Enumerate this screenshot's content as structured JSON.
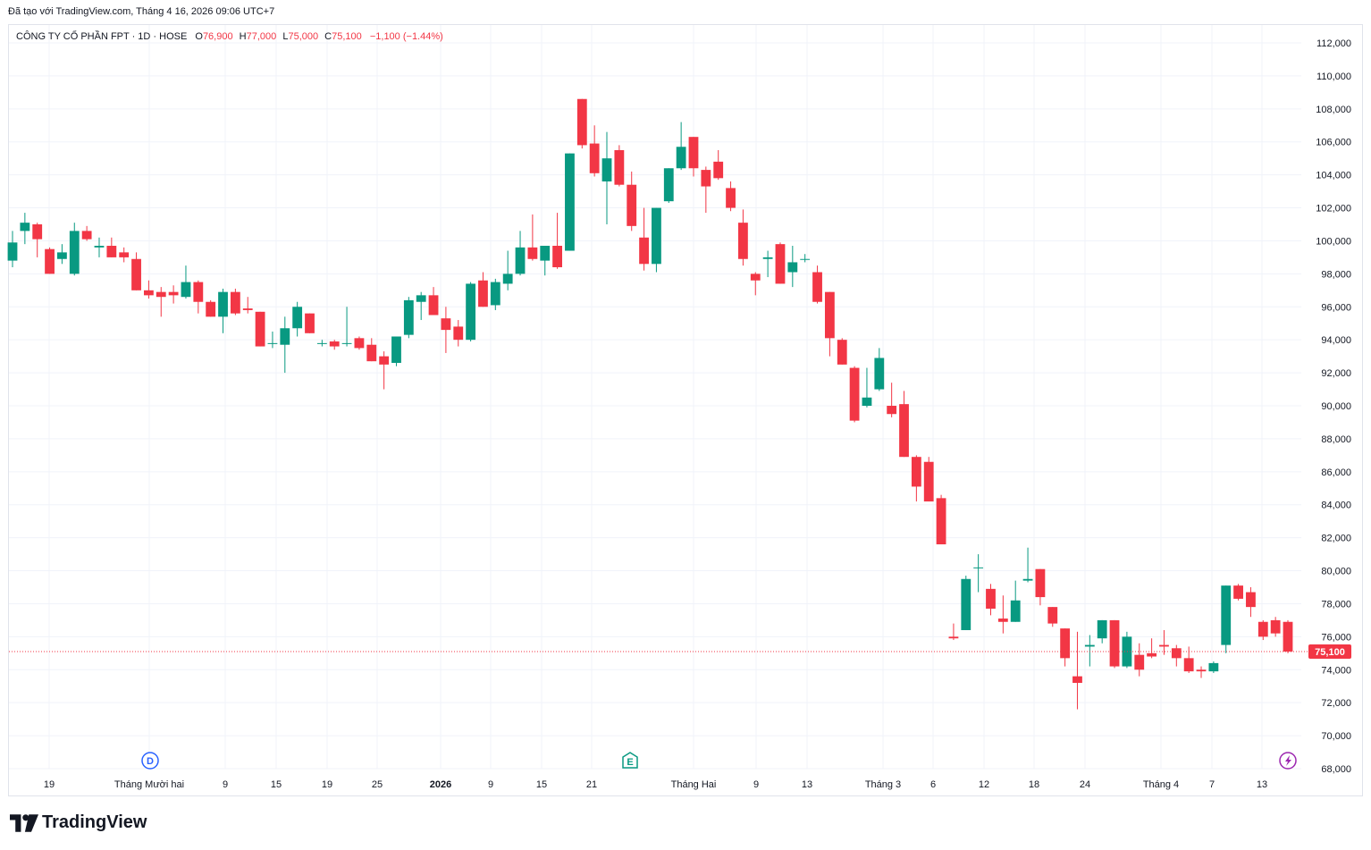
{
  "header": {
    "created_with": "Đã tạo với TradingView.com, Tháng 4 16, 2026 09:06 UTC+7"
  },
  "legend": {
    "symbol": "CÔNG TY CỔ PHẦN FPT · 1D · HOSE",
    "open_label": "O",
    "open": "76,900",
    "high_label": "H",
    "high": "77,000",
    "low_label": "L",
    "low": "75,000",
    "close_label": "C",
    "close": "75,100",
    "change": "−1,100 (−1.44%)"
  },
  "brand": {
    "name": "TradingView"
  },
  "markers": {
    "dividend": "D",
    "earnings": "E",
    "split_icon": "lightning-icon"
  },
  "colors": {
    "up": "#089981",
    "down": "#f23645",
    "grid": "#f0f3fa",
    "text": "#131722"
  },
  "chart_data": {
    "type": "candlestick",
    "y_axis": {
      "min": 68000,
      "max": 112000,
      "step": 2000,
      "side": "right"
    },
    "last_price": {
      "value": 75100,
      "label": "75,100"
    },
    "x_labels": [
      "19",
      "Tháng Mười hai",
      "9",
      "15",
      "19",
      "25",
      "2026",
      "9",
      "15",
      "21",
      "Tháng Hai",
      "9",
      "13",
      "Tháng 3",
      "6",
      "12",
      "18",
      "24",
      "Tháng 4",
      "7",
      "13"
    ],
    "ohlc": [
      [
        98800,
        100600,
        98400,
        99900
      ],
      [
        100600,
        101700,
        99800,
        101100
      ],
      [
        101000,
        101100,
        99000,
        100100
      ],
      [
        99500,
        99600,
        98000,
        98000
      ],
      [
        98900,
        99800,
        98600,
        99300
      ],
      [
        98000,
        101100,
        97900,
        100600
      ],
      [
        100600,
        100900,
        100000,
        100100
      ],
      [
        99600,
        100200,
        99000,
        99700
      ],
      [
        99700,
        100200,
        99000,
        99000
      ],
      [
        99300,
        99600,
        98700,
        99000
      ],
      [
        98900,
        99300,
        97000,
        97000
      ],
      [
        97000,
        97600,
        96500,
        96700
      ],
      [
        96900,
        97200,
        95400,
        96600
      ],
      [
        96900,
        97300,
        96200,
        96700
      ],
      [
        96600,
        98500,
        96500,
        97500
      ],
      [
        97500,
        97600,
        95600,
        96300
      ],
      [
        96300,
        96400,
        95400,
        95400
      ],
      [
        95400,
        97100,
        94400,
        96900
      ],
      [
        96900,
        97100,
        95500,
        95600
      ],
      [
        95900,
        96600,
        95600,
        95800
      ],
      [
        95700,
        95700,
        93600,
        93600
      ],
      [
        93800,
        94500,
        93500,
        93800
      ],
      [
        93700,
        95400,
        92000,
        94700
      ],
      [
        94700,
        96300,
        94200,
        96000
      ],
      [
        95600,
        95600,
        94400,
        94400
      ],
      [
        93800,
        94000,
        93600,
        93800
      ],
      [
        93900,
        94000,
        93400,
        93600
      ],
      [
        93800,
        96000,
        93600,
        93800
      ],
      [
        94100,
        94200,
        93400,
        93500
      ],
      [
        93700,
        94100,
        92700,
        92700
      ],
      [
        93000,
        93300,
        91000,
        92500
      ],
      [
        92600,
        94200,
        92400,
        94200
      ],
      [
        94300,
        96600,
        94100,
        96400
      ],
      [
        96300,
        96900,
        95200,
        96700
      ],
      [
        96700,
        97200,
        95500,
        95500
      ],
      [
        95300,
        96000,
        93200,
        94600
      ],
      [
        94800,
        95200,
        93600,
        94000
      ],
      [
        94000,
        97500,
        93900,
        97400
      ],
      [
        97600,
        98100,
        96000,
        96000
      ],
      [
        96100,
        97700,
        95800,
        97500
      ],
      [
        97400,
        99400,
        97000,
        98000
      ],
      [
        98000,
        100600,
        97900,
        99600
      ],
      [
        99600,
        101600,
        98800,
        98900
      ],
      [
        98800,
        99600,
        97900,
        99700
      ],
      [
        99700,
        101700,
        98300,
        98400
      ],
      [
        99400,
        105300,
        99400,
        105300
      ],
      [
        108600,
        108600,
        105600,
        105800
      ],
      [
        105900,
        107000,
        103900,
        104100
      ],
      [
        103600,
        106600,
        101000,
        105000
      ],
      [
        105500,
        105800,
        103300,
        103400
      ],
      [
        103400,
        104200,
        100600,
        100900
      ],
      [
        100200,
        102000,
        98200,
        98600
      ],
      [
        98600,
        102000,
        98100,
        102000
      ],
      [
        102400,
        104400,
        102300,
        104400
      ],
      [
        104400,
        107200,
        104300,
        105700
      ],
      [
        106300,
        106300,
        103900,
        104400
      ],
      [
        104300,
        104500,
        101700,
        103300
      ],
      [
        104800,
        105500,
        103700,
        103800
      ],
      [
        103200,
        103600,
        101800,
        102000
      ],
      [
        101100,
        101900,
        98500,
        98900
      ],
      [
        98000,
        98100,
        96700,
        97600
      ],
      [
        98900,
        99400,
        97800,
        99000
      ],
      [
        99800,
        99900,
        97400,
        97400
      ],
      [
        98100,
        99700,
        97200,
        98700
      ],
      [
        98900,
        99200,
        98700,
        98900
      ],
      [
        98100,
        98500,
        96200,
        96300
      ],
      [
        96900,
        96900,
        93000,
        94100
      ],
      [
        94000,
        94100,
        92500,
        92500
      ],
      [
        92300,
        92400,
        89000,
        89100
      ],
      [
        90000,
        92300,
        89900,
        90500
      ],
      [
        91000,
        93500,
        90900,
        92900
      ],
      [
        90000,
        91400,
        89300,
        89500
      ],
      [
        90100,
        90900,
        86900,
        86900
      ],
      [
        86900,
        87000,
        84200,
        85100
      ],
      [
        86600,
        86900,
        84200,
        84200
      ],
      [
        84400,
        84600,
        81600,
        81600
      ],
      [
        76000,
        76800,
        75800,
        75900
      ],
      [
        76400,
        79700,
        76400,
        79500
      ],
      [
        80200,
        81000,
        78700,
        80200
      ],
      [
        78900,
        79200,
        77300,
        77700
      ],
      [
        77100,
        78500,
        76200,
        76900
      ],
      [
        76900,
        79400,
        76900,
        78200
      ],
      [
        79400,
        81400,
        79300,
        79500
      ],
      [
        80100,
        80100,
        77900,
        78400
      ],
      [
        77800,
        77800,
        76600,
        76800
      ],
      [
        76500,
        76500,
        74200,
        74700
      ],
      [
        73600,
        76300,
        71600,
        73200
      ],
      [
        75400,
        76100,
        74200,
        75500
      ],
      [
        75900,
        77000,
        75600,
        77000
      ],
      [
        77000,
        77000,
        74100,
        74200
      ],
      [
        74200,
        76300,
        74100,
        76000
      ],
      [
        74900,
        75600,
        73600,
        74000
      ],
      [
        75000,
        75900,
        74700,
        74800
      ],
      [
        75500,
        76400,
        74900,
        75400
      ],
      [
        75300,
        75500,
        74200,
        74700
      ],
      [
        74700,
        75400,
        73800,
        73900
      ],
      [
        74000,
        74200,
        73500,
        73900
      ],
      [
        73900,
        74500,
        73800,
        74400
      ],
      [
        75500,
        79100,
        75000,
        79100
      ],
      [
        79100,
        79200,
        78200,
        78300
      ],
      [
        78700,
        79000,
        77200,
        77800
      ],
      [
        76900,
        77000,
        75800,
        76000
      ],
      [
        77000,
        77200,
        76000,
        76200
      ],
      [
        76900,
        77000,
        75000,
        75100
      ]
    ]
  }
}
